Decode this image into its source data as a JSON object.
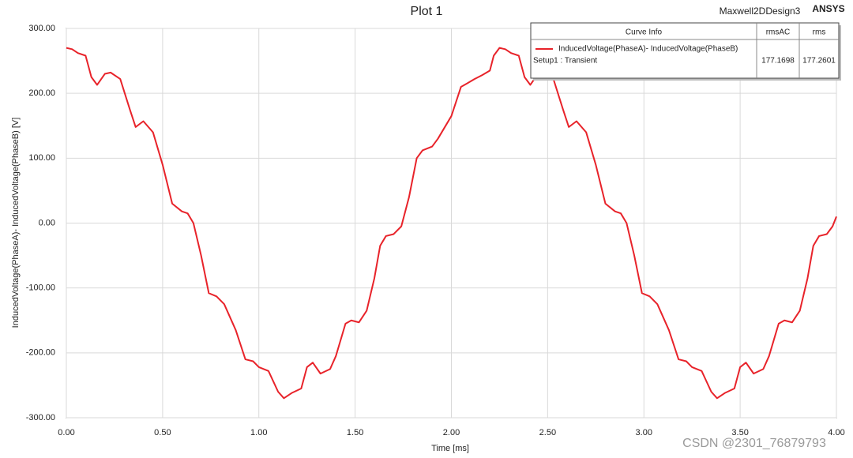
{
  "chart_data": {
    "type": "line",
    "title": "Plot 1",
    "design_name": "Maxwell2DDesign3",
    "brand": "ANSYS",
    "watermark": "CSDN @2301_76879793",
    "x_label": "Time [ms]",
    "y_label": "InducedVoltage(PhaseA)- InducedVoltage(PhaseB) [V]",
    "xlim": [
      0,
      4
    ],
    "ylim": [
      -300,
      300
    ],
    "xticks": [
      {
        "value": 0,
        "label": "0.00"
      },
      {
        "value": 0.5,
        "label": "0.50"
      },
      {
        "value": 1,
        "label": "1.00"
      },
      {
        "value": 1.5,
        "label": "1.50"
      },
      {
        "value": 2,
        "label": "2.00"
      },
      {
        "value": 2.5,
        "label": "2.50"
      },
      {
        "value": 3,
        "label": "3.00"
      },
      {
        "value": 3.5,
        "label": "3.50"
      },
      {
        "value": 4,
        "label": "4.00"
      }
    ],
    "yticks": [
      {
        "value": -300,
        "label": "-300.00"
      },
      {
        "value": -200,
        "label": "-200.00"
      },
      {
        "value": -100,
        "label": "-100.00"
      },
      {
        "value": 0,
        "label": "0.00"
      },
      {
        "value": 100,
        "label": "100.00"
      },
      {
        "value": 200,
        "label": "200.00"
      },
      {
        "value": 300,
        "label": "300.00"
      }
    ],
    "grid": true,
    "x": [
      0,
      0.03,
      0.06,
      0.1,
      0.13,
      0.16,
      0.2,
      0.23,
      0.28,
      0.33,
      0.36,
      0.4,
      0.45,
      0.5,
      0.55,
      0.6,
      0.63,
      0.66,
      0.7,
      0.74,
      0.78,
      0.82,
      0.88,
      0.93,
      0.97,
      1.0,
      1.05,
      1.1,
      1.13,
      1.17,
      1.22,
      1.25,
      1.28,
      1.32,
      1.37,
      1.4,
      1.45,
      1.48,
      1.52,
      1.56,
      1.6,
      1.63,
      1.66,
      1.7,
      1.74,
      1.78,
      1.82,
      1.85,
      1.9,
      1.93,
      2.0,
      2.05,
      2.08,
      2.12,
      2.16,
      2.2,
      2.22,
      2.25,
      2.28,
      2.31,
      2.35,
      2.38,
      2.41,
      2.45,
      2.48,
      2.53,
      2.58,
      2.61,
      2.65,
      2.7,
      2.75,
      2.8,
      2.85,
      2.88,
      2.91,
      2.95,
      2.99,
      3.03,
      3.07,
      3.13,
      3.18,
      3.22,
      3.25,
      3.3,
      3.35,
      3.38,
      3.42,
      3.47,
      3.5,
      3.53,
      3.57,
      3.62,
      3.65,
      3.7,
      3.73,
      3.77,
      3.81,
      3.85,
      3.88,
      3.91,
      3.95,
      3.98,
      4.0
    ],
    "series": [
      {
        "name": "InducedVoltage(PhaseA)- InducedVoltage(PhaseB)",
        "color": "#e8232a",
        "values": [
          270,
          268,
          262,
          258,
          225,
          213,
          230,
          232,
          222,
          175,
          148,
          157,
          140,
          90,
          30,
          18,
          15,
          0,
          -50,
          -108,
          -113,
          -125,
          -165,
          -210,
          -213,
          -222,
          -228,
          -260,
          -270,
          -262,
          -255,
          -222,
          -215,
          -232,
          -225,
          -205,
          -155,
          -150,
          -153,
          -135,
          -85,
          -35,
          -20,
          -17,
          -5,
          40,
          100,
          112,
          118,
          130,
          165,
          210,
          215,
          222,
          228,
          235,
          258,
          270,
          268,
          262,
          258,
          225,
          213,
          230,
          232,
          222,
          175,
          148,
          157,
          140,
          90,
          30,
          18,
          15,
          0,
          -50,
          -108,
          -113,
          -125,
          -165,
          -210,
          -213,
          -222,
          -228,
          -260,
          -270,
          -262,
          -255,
          -222,
          -215,
          -232,
          -225,
          -205,
          -155,
          -150,
          -153,
          -135,
          -85,
          -35,
          -20,
          -17,
          -5,
          10
        ]
      }
    ],
    "legend_table": {
      "headers": [
        "Curve Info",
        "rmsAC",
        "rms"
      ],
      "setup": "Setup1 : Transient",
      "rmsAC": 177.1698,
      "rms": 177.2601
    }
  }
}
